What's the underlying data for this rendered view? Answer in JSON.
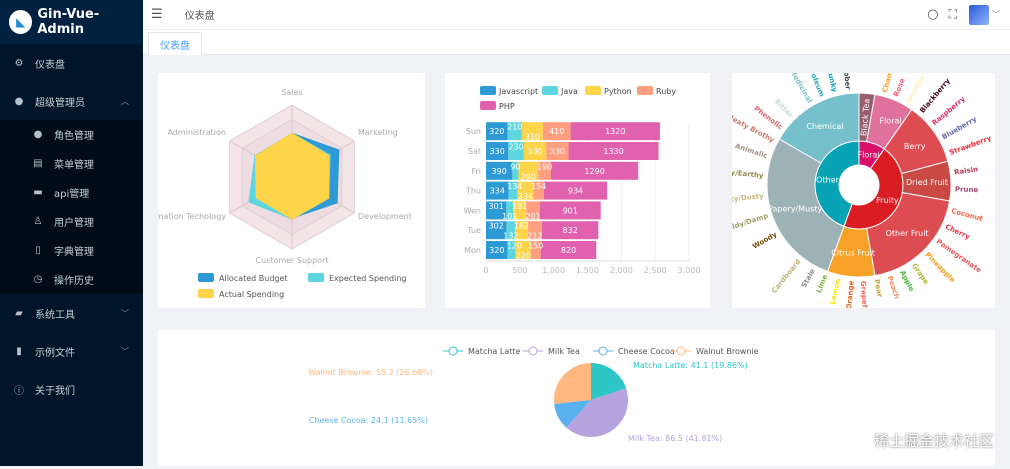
{
  "app": {
    "title": "Gin-Vue-Admin"
  },
  "sidebar": {
    "items": [
      {
        "label": "仪表盘",
        "icon": "gear-icon"
      },
      {
        "label": "超级管理员",
        "icon": "user-icon",
        "expanded": true,
        "children": [
          {
            "label": "角色管理",
            "icon": "user-icon"
          },
          {
            "label": "菜单管理",
            "icon": "clipboard-icon"
          },
          {
            "label": "api管理",
            "icon": "monitor-icon"
          },
          {
            "label": "用户管理",
            "icon": "person-outline-icon"
          },
          {
            "label": "字典管理",
            "icon": "notebook-icon"
          },
          {
            "label": "操作历史",
            "icon": "clock-icon"
          }
        ]
      },
      {
        "label": "系统工具",
        "icon": "toolbox-icon"
      },
      {
        "label": "示例文件",
        "icon": "files-icon"
      },
      {
        "label": "关于我们",
        "icon": "info-icon"
      }
    ]
  },
  "header": {
    "breadcrumb": "仪表盘"
  },
  "tabs": [
    {
      "label": "仪表盘",
      "active": true
    }
  ],
  "watermark": "稀土掘金技术社区",
  "chart_data": [
    {
      "type": "radar",
      "indicators": [
        "Sales",
        "Administration",
        "Information Techology",
        "Customer Support",
        "Development",
        "Marketing"
      ],
      "max": [
        6500,
        16000,
        30000,
        38000,
        52000,
        25000
      ],
      "series": [
        {
          "name": "Allocated Budget",
          "color": "#2d9ad6",
          "values": [
            4000,
            9000,
            17000,
            22000,
            38000,
            19000
          ]
        },
        {
          "name": "Expected Spending",
          "color": "#5ed6e0",
          "values": [
            4000,
            9600,
            21000,
            22500,
            31000,
            15500
          ]
        },
        {
          "name": "Actual Spending",
          "color": "#fed449",
          "values": [
            4000,
            9500,
            17500,
            22500,
            31000,
            15000
          ]
        }
      ],
      "legend": "bottom"
    },
    {
      "type": "bar",
      "orientation": "horizontal",
      "stacked": true,
      "categories": [
        "Mon",
        "Tue",
        "Wen",
        "Thu",
        "Fri",
        "Sat",
        "Sun"
      ],
      "xticks": [
        "0",
        "500",
        "1,000",
        "1,500",
        "2,000",
        "2,500",
        "3,000"
      ],
      "xlim": [
        0,
        3000
      ],
      "series": [
        {
          "name": "Javascript",
          "color": "#2d9ad6",
          "values": [
            320,
            302,
            301,
            334,
            390,
            330,
            320
          ]
        },
        {
          "name": "Java",
          "color": "#5ed6e0",
          "values": [
            120,
            132,
            101,
            134,
            90,
            230,
            210
          ]
        },
        {
          "name": "Python",
          "color": "#fed449",
          "values": [
            220,
            182,
            191,
            234,
            290,
            330,
            310
          ]
        },
        {
          "name": "Ruby",
          "color": "#ff9f7f",
          "values": [
            150,
            212,
            201,
            154,
            190,
            330,
            410
          ]
        },
        {
          "name": "PHP",
          "color": "#e062ae",
          "values": [
            820,
            832,
            901,
            934,
            1290,
            1330,
            1320
          ]
        }
      ],
      "legend": "top"
    },
    {
      "type": "sunburst",
      "inner": [
        {
          "name": "Floral",
          "color": "#da0d68",
          "from": 0,
          "to": 35
        },
        {
          "name": "Fruity",
          "color": "#da1d23",
          "from": 35,
          "to": 200
        },
        {
          "name": "Other",
          "color": "#0aa3b5",
          "from": 200,
          "to": 360
        }
      ],
      "middle": [
        {
          "name": "Black Tea",
          "color": "#975e6d",
          "from": 0,
          "to": 10
        },
        {
          "name": "Floral",
          "color": "#e0719c",
          "from": 10,
          "to": 35
        },
        {
          "name": "Berry",
          "color": "#dd4c51",
          "from": 35,
          "to": 75
        },
        {
          "name": "Dried Fruit",
          "color": "#c94a44",
          "from": 75,
          "to": 100
        },
        {
          "name": "Other Fruit",
          "color": "#dd4c51",
          "from": 100,
          "to": 170
        },
        {
          "name": "Citrus Fruit",
          "color": "#f7a128",
          "from": 170,
          "to": 200
        },
        {
          "name": "Papery/Musty",
          "color": "#9db2b7",
          "from": 200,
          "to": 300
        },
        {
          "name": "Chemical",
          "color": "#76c0cb",
          "from": 300,
          "to": 360
        }
      ],
      "outer": [
        [
          "Chamomile",
          "#f99e1c",
          15
        ],
        [
          "Rose",
          "#ef5a78",
          22
        ],
        [
          "Jasmine",
          "#f7f1bd",
          30
        ],
        [
          "Blackberry",
          "#3e0317",
          40
        ],
        [
          "Raspberry",
          "#e62969",
          50
        ],
        [
          "Blueberry",
          "#6569b0",
          60
        ],
        [
          "Strawberry",
          "#ef2d36",
          70
        ],
        [
          "Raisin",
          "#b53b54",
          82
        ],
        [
          "Prune",
          "#a5446f",
          92
        ],
        [
          "Coconut",
          "#f2684b",
          105
        ],
        [
          "Cherry",
          "#e73451",
          115
        ],
        [
          "Pomegranate",
          "#e65656",
          125
        ],
        [
          "Pineapple",
          "#f89a1c",
          135
        ],
        [
          "Grape",
          "#aeb92c",
          145
        ],
        [
          "Apple",
          "#4eb849",
          153
        ],
        [
          "Peach",
          "#f68a5c",
          161
        ],
        [
          "Pear",
          "#baa635",
          169
        ],
        [
          "Grapefruit",
          "#f26355",
          177
        ],
        [
          "Orange",
          "#e2631e",
          185
        ],
        [
          "Lemon",
          "#fde404",
          193
        ],
        [
          "Lime",
          "#7eb138",
          201
        ],
        [
          "Stale",
          "#8b8c90",
          209
        ],
        [
          "Cardboard",
          "#beb276",
          219
        ],
        [
          "Woody",
          "#744e03",
          240
        ],
        [
          "Moldy/Damp",
          "#a3a36f",
          252
        ],
        [
          "Musty/Dusty",
          "#c9b583",
          264
        ],
        [
          "Musty/Earthy",
          "#978847",
          276
        ],
        [
          "Animalic",
          "#9d977f",
          288
        ],
        [
          "Meaty Brothy",
          "#cc7b6a",
          298
        ],
        [
          "Phenolic",
          "#db646a",
          307
        ],
        [
          "Bitter",
          "#c7dcd9",
          316
        ],
        [
          "Medicinal",
          "#76c0cb",
          330
        ],
        [
          "Petroleum",
          "#27a4b4",
          338
        ],
        [
          "Skunky",
          "#0aa3b5",
          346
        ],
        [
          "Rubber",
          "#3c4a4e",
          354
        ]
      ]
    },
    {
      "type": "pie",
      "series": [
        {
          "name": "Matcha Latte",
          "value": 41.1,
          "percent": "19.86%",
          "color": "#2ec7c9",
          "label": "Matcha Latte: 41.1 (19.86%)"
        },
        {
          "name": "Milk Tea",
          "value": 86.5,
          "percent": "41.81%",
          "color": "#b6a2de",
          "label": "Milk Tea: 86.5 (41.81%)"
        },
        {
          "name": "Cheese Cocoa",
          "value": 24.1,
          "percent": "11.65%",
          "color": "#5ab1ef",
          "label": "Cheese Cocoa: 24.1 (11.65%)"
        },
        {
          "name": "Walnut Brownie",
          "value": 55.2,
          "percent": "26.68%",
          "color": "#ffb980",
          "label": "Walnut Brownie: 55.2 (26.68%)"
        }
      ],
      "legend": "top"
    }
  ]
}
